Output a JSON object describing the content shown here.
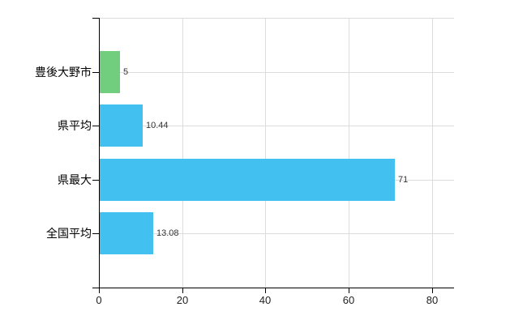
{
  "chart_data": {
    "type": "bar",
    "orientation": "horizontal",
    "title": "",
    "xlabel": "",
    "ylabel": "",
    "categories": [
      "豊後大野市",
      "県平均",
      "県最大",
      "全国平均"
    ],
    "values": [
      5,
      10.44,
      71,
      13.08
    ],
    "value_labels": [
      "5",
      "10.44",
      "71",
      "13.08"
    ],
    "bar_colors": [
      "#70ce7e",
      "#42c0f0",
      "#42c0f0",
      "#42c0f0"
    ],
    "x_ticks": [
      0,
      20,
      40,
      60,
      80
    ],
    "x_tick_labels": [
      "0",
      "20",
      "40",
      "60",
      "80"
    ],
    "xlim": [
      0,
      85.3
    ],
    "grid": true,
    "legend": false,
    "colors": {
      "background": "#ffffff",
      "gridline": "#dcdcdc",
      "axis": "#000000",
      "value_text": "#333333",
      "category_text": "#000000",
      "tick_text": "#222222"
    }
  }
}
